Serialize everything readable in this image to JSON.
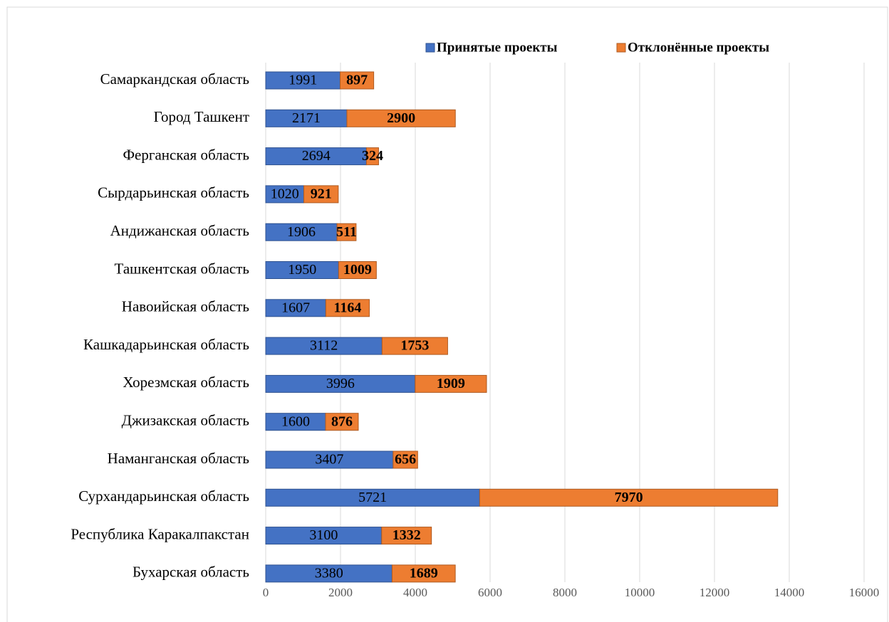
{
  "chart_data": {
    "type": "stacked_barh",
    "categories": [
      "Самаркандская область",
      "Город Ташкент",
      "Ферганская область",
      "Сырдарьинская область",
      "Андижанская область",
      "Ташкентская область",
      "Навоийская область",
      "Кашкадарьинская область",
      "Хорезмская область",
      "Джизакская область",
      "Наманганская область",
      "Сурхандарьинская область",
      "Республика Каракалпакстан",
      "Бухарская область"
    ],
    "series": [
      {
        "name": "Принятые проекты",
        "color": "#4472c4",
        "values": [
          1991,
          2171,
          2694,
          1020,
          1906,
          1950,
          1607,
          3112,
          3996,
          1600,
          3407,
          5721,
          3100,
          3380
        ]
      },
      {
        "name": "Отклонённые проекты",
        "color": "#ed7d31",
        "values": [
          897,
          2900,
          324,
          921,
          511,
          1009,
          1164,
          1753,
          1909,
          876,
          656,
          7970,
          1332,
          1689
        ]
      }
    ],
    "xlim": [
      0,
      16000
    ],
    "xticks": [
      0,
      2000,
      4000,
      6000,
      8000,
      10000,
      12000,
      14000,
      16000
    ],
    "grid": true,
    "legend": "top"
  }
}
